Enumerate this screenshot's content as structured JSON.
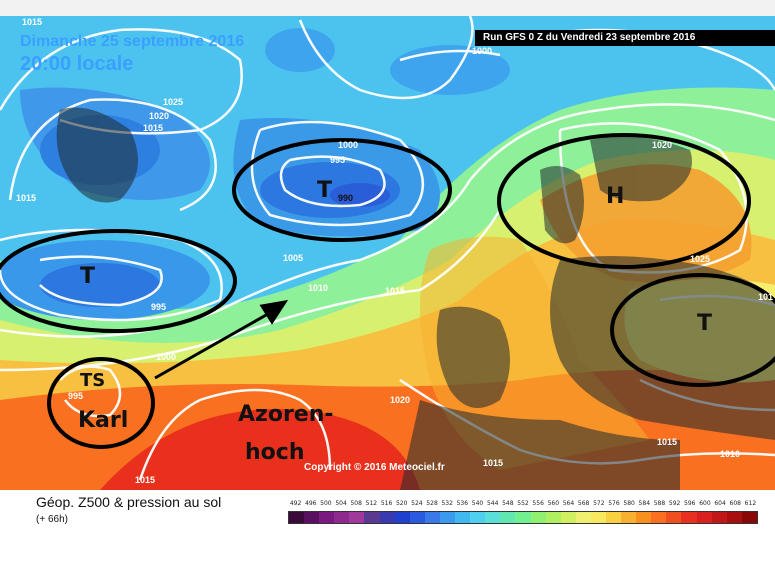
{
  "map": {
    "date_line": "Dimanche 25 septembre 2016",
    "time_line": "20:00 locale",
    "run_label": "Run GFS 0 Z du Vendredi 23 septembre 2016",
    "copyright": "Copyright © 2016 Meteociel.fr",
    "pressure_systems": [
      "T",
      "T",
      "H",
      "T"
    ],
    "storm_label_ts": "TS",
    "storm_label_name": "Karl",
    "azores_line1": "Azoren-",
    "azores_line2": "hoch",
    "isobars": [
      "1015",
      "1025",
      "1020",
      "1015",
      "1015",
      "1000",
      "995",
      "990",
      "1000",
      "1020",
      "1025",
      "1005",
      "1010",
      "1015",
      "995",
      "1000",
      "995",
      "1020",
      "1015",
      "1015",
      "1010",
      "1015",
      "101"
    ]
  },
  "legend": {
    "title": "Géop. Z500 & pression au sol",
    "subtitle": "(+ 66h)",
    "scale_values": [
      "492",
      "496",
      "500",
      "504",
      "508",
      "512",
      "516",
      "520",
      "524",
      "528",
      "532",
      "536",
      "540",
      "544",
      "548",
      "552",
      "556",
      "560",
      "564",
      "568",
      "572",
      "576",
      "580",
      "584",
      "588",
      "592",
      "596",
      "600",
      "604",
      "608",
      "612"
    ],
    "scale_colors": [
      "#3a0a3a",
      "#5a1060",
      "#7a1a80",
      "#8e2a8e",
      "#a03a9a",
      "#5a3a90",
      "#3a3ab0",
      "#2040d0",
      "#2a5ae0",
      "#3a7ae8",
      "#3a9af0",
      "#40b8f0",
      "#50d0f0",
      "#5ae0d8",
      "#60e8b0",
      "#70f090",
      "#90f070",
      "#b0f060",
      "#d0f060",
      "#f0f070",
      "#f8e860",
      "#f8d040",
      "#f8b030",
      "#f89020",
      "#f87020",
      "#f05020",
      "#e83020",
      "#d82020",
      "#c01818",
      "#a81010",
      "#880808"
    ]
  }
}
